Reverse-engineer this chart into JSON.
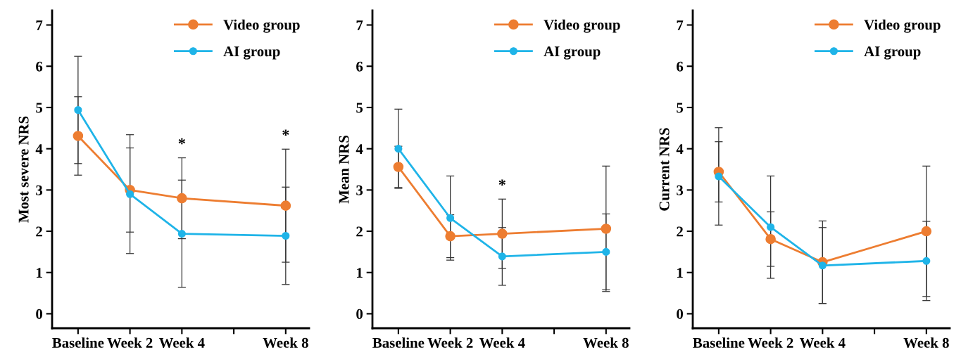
{
  "chart_data": [
    {
      "type": "line",
      "ylabel": "Most severe NRS",
      "categories": [
        "Baseline",
        "Week 2",
        "Week 4",
        null,
        "Week 8"
      ],
      "ylim": [
        -0.35,
        7.35
      ],
      "yticks": [
        0,
        1,
        2,
        3,
        4,
        5,
        6,
        7
      ],
      "marker": "circle",
      "legend": "top right",
      "grid": false,
      "series": [
        {
          "name": "Video group",
          "color": "#ed7d31",
          "values": [
            4.31,
            3.0,
            2.8,
            null,
            2.62
          ],
          "errors": [
            0.95,
            1.02,
            0.98,
            null,
            1.37
          ]
        },
        {
          "name": "AI group",
          "color": "#1fb4e8",
          "values": [
            4.94,
            2.9,
            1.94,
            null,
            1.89
          ],
          "errors": [
            1.3,
            1.44,
            1.3,
            null,
            1.18
          ]
        }
      ],
      "annotations": [
        "*",
        "*"
      ]
    },
    {
      "type": "line",
      "ylabel": "Mean NRS",
      "categories": [
        "Baseline",
        "Week 2",
        "Week 4",
        null,
        "Week 8"
      ],
      "ylim": [
        -0.35,
        7.35
      ],
      "yticks": [
        0,
        1,
        2,
        3,
        4,
        5,
        6,
        7
      ],
      "marker": "circle",
      "legend": "top right",
      "grid": false,
      "series": [
        {
          "name": "Video group",
          "color": "#ed7d31",
          "values": [
            3.56,
            1.88,
            1.94,
            null,
            2.06
          ],
          "errors": [
            0.5,
            0.52,
            0.84,
            null,
            1.52
          ]
        },
        {
          "name": "AI group",
          "color": "#1fb4e8",
          "values": [
            4.0,
            2.32,
            1.39,
            null,
            1.5
          ],
          "errors": [
            0.96,
            1.02,
            0.7,
            null,
            0.92
          ]
        }
      ],
      "annotations": [
        "*"
      ]
    },
    {
      "type": "line",
      "ylabel": "Current NRS",
      "categories": [
        "Baseline",
        "Week 2",
        "Week 4",
        null,
        "Week 8"
      ],
      "ylim": [
        -0.35,
        7.35
      ],
      "yticks": [
        0,
        1,
        2,
        3,
        4,
        5,
        6,
        7
      ],
      "marker": "circle",
      "legend": "top right",
      "grid": false,
      "series": [
        {
          "name": "Video group",
          "color": "#ed7d31",
          "values": [
            3.44,
            1.81,
            1.25,
            null,
            2.0
          ],
          "errors": [
            0.73,
            0.66,
            1.0,
            null,
            1.58
          ]
        },
        {
          "name": "AI group",
          "color": "#1fb4e8",
          "values": [
            3.33,
            2.1,
            1.17,
            null,
            1.28
          ],
          "errors": [
            1.18,
            1.24,
            0.92,
            null,
            0.96
          ]
        }
      ]
    }
  ]
}
